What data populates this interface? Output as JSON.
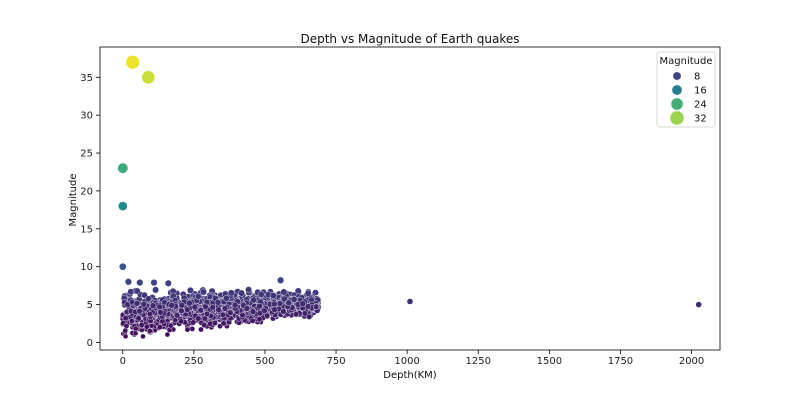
{
  "chart_data": {
    "type": "scatter",
    "title": "Depth vs Magnitude of Earth quakes",
    "xlabel": "Depth(KM)",
    "ylabel": "Magnitude",
    "xlim": [
      -80,
      2100
    ],
    "ylim": [
      -1,
      39
    ],
    "x_ticks": [
      0,
      250,
      500,
      750,
      1000,
      1250,
      1500,
      1750,
      2000
    ],
    "y_ticks": [
      0,
      5,
      10,
      15,
      20,
      25,
      30,
      35
    ],
    "grid": false,
    "legend": {
      "title": "Magnitude",
      "position": "top-right",
      "entries": [
        {
          "label": "8",
          "value": 8
        },
        {
          "label": "16",
          "value": 16
        },
        {
          "label": "24",
          "value": 24
        },
        {
          "label": "32",
          "value": 32
        }
      ]
    },
    "hue_variable": "Magnitude",
    "size_variable": "Magnitude",
    "colormap": "viridis",
    "dense_cluster": {
      "depth_range": [
        0,
        690
      ],
      "magnitude_range": [
        0.8,
        8.2
      ],
      "description_shown": "overlapping point cloud"
    },
    "points": [
      {
        "x": 35,
        "y": 37
      },
      {
        "x": 90,
        "y": 35
      },
      {
        "x": 0,
        "y": 23
      },
      {
        "x": 0,
        "y": 18
      },
      {
        "x": 0,
        "y": 10
      },
      {
        "x": 555,
        "y": 8.2
      },
      {
        "x": 1010,
        "y": 5.4
      },
      {
        "x": 2025,
        "y": 5.0
      },
      {
        "x": 680,
        "y": 4.7
      },
      {
        "x": 20,
        "y": 8
      },
      {
        "x": 60,
        "y": 7.9
      },
      {
        "x": 110,
        "y": 7.9
      },
      {
        "x": 160,
        "y": 7.8
      },
      {
        "x": 10,
        "y": 0.8
      },
      {
        "x": 45,
        "y": 1.2
      }
    ]
  }
}
